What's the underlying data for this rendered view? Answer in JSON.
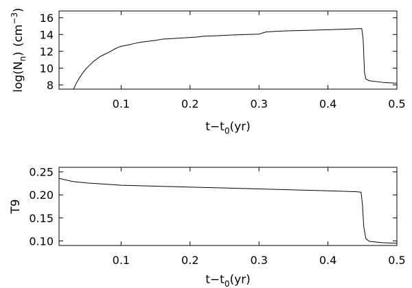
{
  "chart_data": [
    {
      "type": "line",
      "title": "",
      "xlabel": {
        "prefix": "t",
        "dash": "−",
        "symbol": "t",
        "subscript": "0",
        "suffix": "(yr)"
      },
      "ylabel": {
        "prefix": "log(N",
        "subscript": "n",
        "suffix": ")",
        "unit_open": "(cm",
        "unit_sup": "−3",
        "unit_close": ")"
      },
      "xlim": [
        0.01,
        0.5
      ],
      "ylim": [
        7.5,
        16.8
      ],
      "xticks": [
        {
          "value": 0.1,
          "label": "0.1"
        },
        {
          "value": 0.2,
          "label": "0.2"
        },
        {
          "value": 0.3,
          "label": "0.3"
        },
        {
          "value": 0.4,
          "label": "0.4"
        },
        {
          "value": 0.5,
          "label": "0.5"
        }
      ],
      "yticks": [
        {
          "value": 8,
          "label": "8"
        },
        {
          "value": 10,
          "label": "10"
        },
        {
          "value": 12,
          "label": "12"
        },
        {
          "value": 14,
          "label": "14"
        },
        {
          "value": 16,
          "label": "16"
        }
      ],
      "grid": false,
      "series": [
        {
          "x": [
            0.031,
            0.035,
            0.04,
            0.045,
            0.05,
            0.055,
            0.06,
            0.065,
            0.07,
            0.075,
            0.08,
            0.085,
            0.09,
            0.095,
            0.1,
            0.11,
            0.12,
            0.13,
            0.14,
            0.15,
            0.16,
            0.17,
            0.18,
            0.19,
            0.2,
            0.21,
            0.22,
            0.24,
            0.26,
            0.28,
            0.3,
            0.31,
            0.33,
            0.35,
            0.37,
            0.39,
            0.41,
            0.43,
            0.445,
            0.449,
            0.451,
            0.453,
            0.455,
            0.46,
            0.48,
            0.5
          ],
          "y": [
            7.5,
            8.2,
            8.9,
            9.5,
            10.0,
            10.4,
            10.8,
            11.1,
            11.4,
            11.6,
            11.8,
            12.0,
            12.25,
            12.45,
            12.6,
            12.75,
            12.95,
            13.1,
            13.2,
            13.3,
            13.45,
            13.5,
            13.55,
            13.6,
            13.65,
            13.7,
            13.8,
            13.85,
            13.95,
            14.0,
            14.05,
            14.3,
            14.4,
            14.45,
            14.5,
            14.55,
            14.6,
            14.65,
            14.7,
            14.7,
            13.5,
            9.5,
            8.7,
            8.5,
            8.3,
            8.2
          ]
        }
      ]
    },
    {
      "type": "line",
      "title": "",
      "xlabel": {
        "prefix": "t",
        "dash": "−",
        "symbol": "t",
        "subscript": "0",
        "suffix": "(yr)"
      },
      "ylabel": "T9",
      "xlim": [
        0.01,
        0.5
      ],
      "ylim": [
        0.09,
        0.26
      ],
      "xticks": [
        {
          "value": 0.1,
          "label": "0.1"
        },
        {
          "value": 0.2,
          "label": "0.2"
        },
        {
          "value": 0.3,
          "label": "0.3"
        },
        {
          "value": 0.4,
          "label": "0.4"
        },
        {
          "value": 0.5,
          "label": "0.5"
        }
      ],
      "yticks": [
        {
          "value": 0.1,
          "label": "0.10"
        },
        {
          "value": 0.15,
          "label": "0.15"
        },
        {
          "value": 0.2,
          "label": "0.20"
        },
        {
          "value": 0.25,
          "label": "0.25"
        }
      ],
      "grid": false,
      "series": [
        {
          "x": [
            0.01,
            0.03,
            0.05,
            0.08,
            0.1,
            0.15,
            0.2,
            0.25,
            0.3,
            0.35,
            0.4,
            0.44,
            0.448,
            0.45,
            0.452,
            0.455,
            0.46,
            0.48,
            0.5
          ],
          "y": [
            0.236,
            0.229,
            0.226,
            0.223,
            0.221,
            0.219,
            0.217,
            0.215,
            0.213,
            0.211,
            0.209,
            0.207,
            0.206,
            0.18,
            0.13,
            0.105,
            0.099,
            0.096,
            0.095
          ]
        }
      ]
    }
  ]
}
